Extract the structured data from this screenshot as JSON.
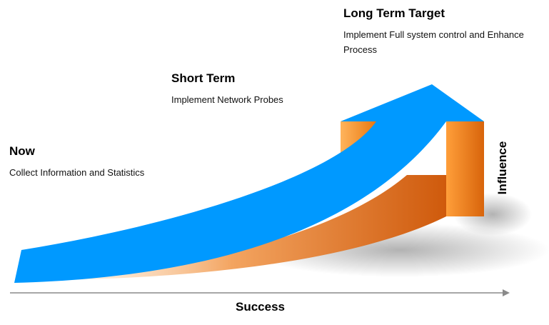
{
  "stages": [
    {
      "title": "Now",
      "description": "Collect Information and Statistics"
    },
    {
      "title": "Short Term",
      "description": "Implement Network Probes"
    },
    {
      "title": "Long Term Target",
      "description": "Implement Full system control and Enhance Process"
    }
  ],
  "axes": {
    "x": "Success",
    "y": "Influence"
  },
  "colors": {
    "arrow": "#0099ff",
    "wall_light": "#ffb25a",
    "wall_dark": "#d9620e",
    "fade": "#fbd9b4",
    "axis_line": "#888888"
  }
}
